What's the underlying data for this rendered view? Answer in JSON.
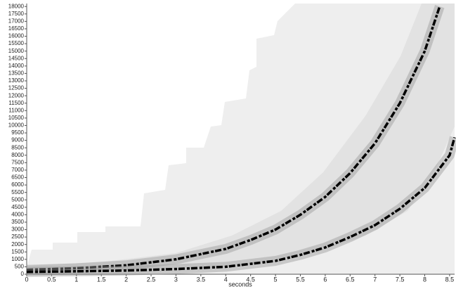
{
  "chart_data": {
    "type": "spectrogram",
    "x_label": "seconds",
    "xlim": [
      0,
      8.6
    ],
    "xticks": [
      0,
      0.5,
      1,
      1.5,
      2,
      2.5,
      3,
      3.5,
      4,
      4.5,
      5,
      5.5,
      6,
      6.5,
      7,
      7.5,
      8,
      8.5
    ],
    "ylim": [
      0,
      18200
    ],
    "yticks": [
      0,
      500,
      1000,
      1500,
      2000,
      2500,
      3000,
      3500,
      4000,
      4500,
      5000,
      5500,
      6000,
      6500,
      7000,
      7500,
      8000,
      8500,
      9000,
      9500,
      10000,
      10500,
      11000,
      11500,
      12000,
      12500,
      13000,
      13500,
      14000,
      14500,
      15000,
      15500,
      16000,
      16500,
      17000,
      17500,
      18000
    ],
    "series": [
      {
        "color": "#000000",
        "x": [
          0,
          1,
          2,
          3,
          4,
          4.5,
          5,
          5.5,
          6,
          6.5,
          7,
          7.5,
          8,
          8.3
        ],
        "values": [
          300,
          400,
          600,
          1000,
          1700,
          2300,
          3000,
          4000,
          5200,
          6800,
          8800,
          11500,
          15000,
          18000
        ]
      },
      {
        "color": "#000000",
        "x": [
          0,
          1,
          2,
          3,
          4,
          5,
          5.5,
          6,
          6.5,
          7,
          7.5,
          8,
          8.5,
          8.6
        ],
        "values": [
          150,
          200,
          250,
          350,
          500,
          900,
          1300,
          1800,
          2500,
          3300,
          4400,
          5800,
          8000,
          9200
        ]
      }
    ]
  }
}
